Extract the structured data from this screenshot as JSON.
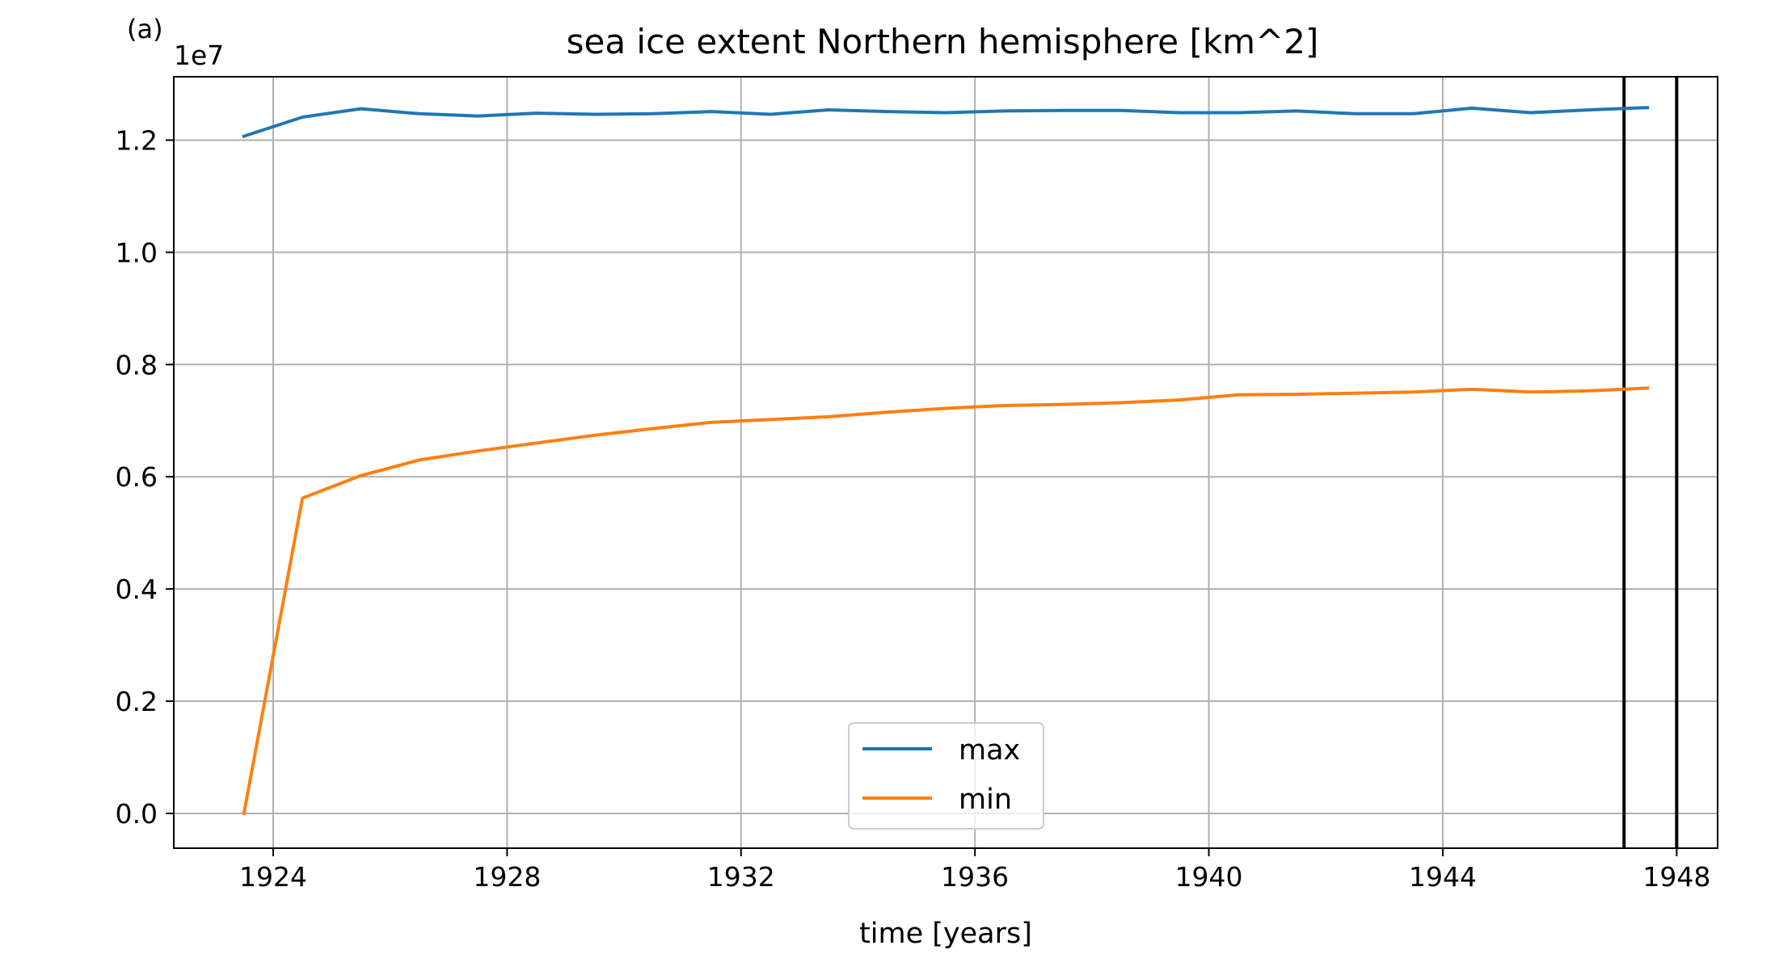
{
  "panel_label": "(a)",
  "chart_data": {
    "type": "line",
    "title": "sea ice extent Northern hemisphere [km^2]",
    "xlabel": "time [years]",
    "ylabel": "",
    "y_offset_label": "1e7",
    "xlim": [
      1922.3,
      1948.7
    ],
    "ylim": [
      -0.062,
      1.313
    ],
    "x_ticks": [
      1924,
      1928,
      1932,
      1936,
      1940,
      1944,
      1948
    ],
    "y_ticks": [
      0.0,
      0.2,
      0.4,
      0.6,
      0.8,
      1.0,
      1.2
    ],
    "y_tick_labels": [
      "0.0",
      "0.2",
      "0.4",
      "0.6",
      "0.8",
      "1.0",
      "1.2"
    ],
    "grid": true,
    "legend_position": "lower center",
    "x": [
      1923.5,
      1924.5,
      1925.5,
      1926.5,
      1927.5,
      1928.5,
      1929.5,
      1930.5,
      1931.5,
      1932.5,
      1933.5,
      1934.5,
      1935.5,
      1936.5,
      1937.5,
      1938.5,
      1939.5,
      1940.5,
      1941.5,
      1942.5,
      1943.5,
      1944.5,
      1945.5,
      1946.5,
      1947.5
    ],
    "series": [
      {
        "name": "max",
        "color": "#1f77b4",
        "values": [
          1.207,
          1.241,
          1.256,
          1.247,
          1.243,
          1.248,
          1.246,
          1.247,
          1.251,
          1.246,
          1.254,
          1.251,
          1.249,
          1.252,
          1.253,
          1.253,
          1.249,
          1.249,
          1.252,
          1.247,
          1.247,
          1.257,
          1.249,
          1.254,
          1.258
        ]
      },
      {
        "name": "min",
        "color": "#ff7f0e",
        "values": [
          0.0,
          0.562,
          0.602,
          0.63,
          0.646,
          0.66,
          0.674,
          0.686,
          0.697,
          0.702,
          0.707,
          0.715,
          0.722,
          0.727,
          0.729,
          0.732,
          0.737,
          0.746,
          0.747,
          0.749,
          0.751,
          0.756,
          0.751,
          0.753,
          0.758
        ]
      }
    ],
    "vertical_lines": [
      {
        "x": 1947.1,
        "color": "#000000"
      },
      {
        "x": 1948.0,
        "color": "#000000"
      }
    ]
  }
}
